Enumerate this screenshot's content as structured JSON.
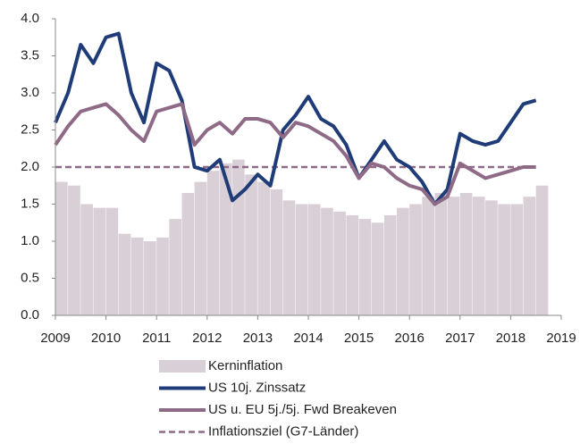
{
  "chart_data": {
    "type": "line",
    "x": [
      2009,
      2009.25,
      2009.5,
      2009.75,
      2010,
      2010.25,
      2010.5,
      2010.75,
      2011,
      2011.25,
      2011.5,
      2011.75,
      2012,
      2012.25,
      2012.5,
      2012.75,
      2013,
      2013.25,
      2013.5,
      2013.75,
      2014,
      2014.25,
      2014.5,
      2014.75,
      2015,
      2015.25,
      2015.5,
      2015.75,
      2016,
      2016.25,
      2016.5,
      2016.75,
      2017,
      2017.25,
      2017.5,
      2017.75,
      2018,
      2018.25,
      2018.5
    ],
    "series": [
      {
        "name": "Kerninflation",
        "color": "#d9cfd6",
        "style": "bar",
        "values": [
          1.8,
          1.75,
          1.5,
          1.45,
          1.45,
          1.1,
          1.05,
          1.0,
          1.05,
          1.3,
          1.65,
          1.8,
          1.95,
          2.05,
          2.1,
          1.9,
          1.8,
          1.7,
          1.55,
          1.5,
          1.5,
          1.45,
          1.4,
          1.35,
          1.3,
          1.25,
          1.35,
          1.45,
          1.5,
          1.6,
          1.65,
          1.6,
          1.65,
          1.6,
          1.55,
          1.5,
          1.5,
          1.6,
          1.75
        ]
      },
      {
        "name": "US 10j. Zinssatz",
        "color": "#1f3c78",
        "style": "line",
        "values": [
          2.6,
          3.0,
          3.65,
          3.4,
          3.75,
          3.8,
          3.0,
          2.6,
          3.4,
          3.3,
          2.9,
          2.0,
          1.95,
          2.1,
          1.55,
          1.7,
          1.9,
          1.75,
          2.5,
          2.7,
          2.95,
          2.65,
          2.55,
          2.3,
          1.85,
          2.1,
          2.35,
          2.1,
          2.0,
          1.8,
          1.5,
          1.7,
          2.45,
          2.35,
          2.3,
          2.35,
          2.6,
          2.85,
          2.9
        ]
      },
      {
        "name": "US u. EU 5j./5j. Fwd Breakeven",
        "color": "#8e6a87",
        "style": "line",
        "values": [
          2.3,
          2.55,
          2.75,
          2.8,
          2.85,
          2.7,
          2.5,
          2.35,
          2.75,
          2.8,
          2.85,
          2.3,
          2.5,
          2.6,
          2.45,
          2.65,
          2.65,
          2.6,
          2.4,
          2.6,
          2.55,
          2.45,
          2.35,
          2.15,
          1.85,
          2.05,
          2.0,
          1.85,
          1.75,
          1.7,
          1.5,
          1.6,
          2.05,
          1.95,
          1.85,
          1.9,
          1.95,
          2.0,
          2.0
        ]
      }
    ],
    "reference_line": {
      "name": "Inflationsziel (G7-Länder)",
      "value": 2,
      "color": "#8e6a87"
    },
    "xlim": [
      2009,
      2019
    ],
    "xticks": [
      2009,
      2010,
      2011,
      2012,
      2013,
      2014,
      2015,
      2016,
      2017,
      2018,
      2019
    ],
    "ylim": [
      0,
      4
    ],
    "yticks": [
      {
        "value": 0,
        "label": "0.0"
      },
      0.5,
      {
        "value": 1,
        "label": "1.0"
      },
      1.5,
      {
        "value": 2,
        "label": "2.0"
      },
      2.5,
      {
        "value": 3,
        "label": "3.0"
      },
      3.5,
      {
        "value": 4,
        "label": "4.0"
      }
    ]
  }
}
